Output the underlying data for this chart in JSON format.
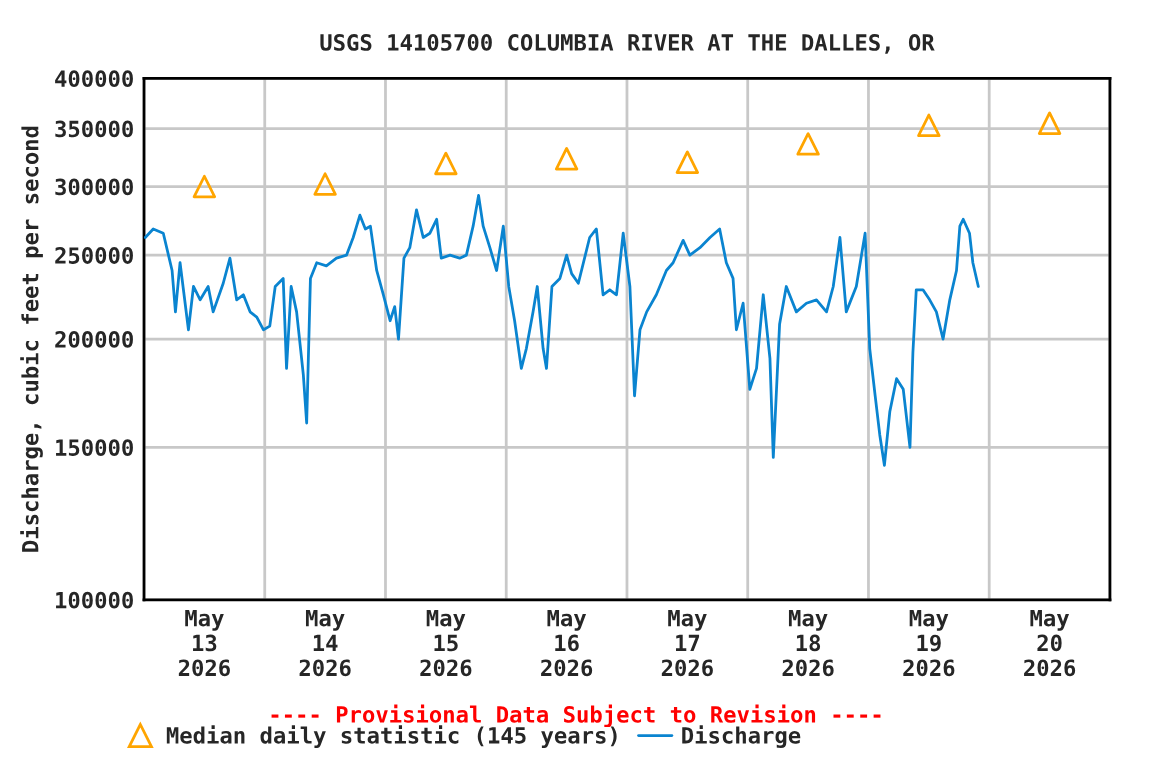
{
  "chart_data": {
    "type": "line",
    "title": "USGS 14105700 COLUMBIA RIVER AT THE DALLES, OR",
    "ylabel": "Discharge, cubic feet per second",
    "annotations": [
      "---- Provisional Data Subject to Revision ----"
    ],
    "log": "y",
    "grid": true,
    "legend": "bottom",
    "xlim": [
      "2026-05-13T00:00",
      "2026-05-21T00:00"
    ],
    "xticks": [
      {
        "value": "2026-05-13T00:00",
        "label": null
      },
      {
        "value": "2026-05-13T12:00",
        "label": "May\n13\n2026"
      },
      {
        "value": "2026-05-14T00:00",
        "label": null
      },
      {
        "value": "2026-05-14T12:00",
        "label": "May\n14\n2026"
      },
      {
        "value": "2026-05-15T00:00",
        "label": null
      },
      {
        "value": "2026-05-15T12:00",
        "label": "May\n15\n2026"
      },
      {
        "value": "2026-05-16T00:00",
        "label": null
      },
      {
        "value": "2026-05-16T12:00",
        "label": "May\n16\n2026"
      },
      {
        "value": "2026-05-17T00:00",
        "label": null
      },
      {
        "value": "2026-05-17T12:00",
        "label": "May\n17\n2026"
      },
      {
        "value": "2026-05-18T00:00",
        "label": null
      },
      {
        "value": "2026-05-18T12:00",
        "label": "May\n18\n2026"
      },
      {
        "value": "2026-05-19T00:00",
        "label": null
      },
      {
        "value": "2026-05-19T12:00",
        "label": "May\n19\n2026"
      },
      {
        "value": "2026-05-20T00:00",
        "label": null
      },
      {
        "value": "2026-05-20T12:00",
        "label": "May\n20\n2026"
      },
      {
        "value": "2026-05-21T00:00",
        "label": null
      }
    ],
    "ylim": [
      100000,
      400000
    ],
    "yticks": [
      100000,
      150000,
      200000,
      250000,
      300000,
      350000,
      400000
    ],
    "series": [
      {
        "name": "Median daily statistic (145 years)",
        "type": "scatter",
        "marker": "triangle",
        "color": "#ffa500",
        "x": [
          "2026-05-13T12:00",
          "2026-05-14T12:00",
          "2026-05-15T12:00",
          "2026-05-16T12:00",
          "2026-05-17T12:00",
          "2026-05-18T12:00",
          "2026-05-19T12:00",
          "2026-05-20T12:00"
        ],
        "values": [
          300000,
          302000,
          319000,
          323000,
          320000,
          336000,
          353000,
          355000
        ]
      },
      {
        "name": "Discharge",
        "marker": "none",
        "line_style": "solid",
        "color": "#0a84d0",
        "x": [
          "2026-05-13T00:15",
          "2026-05-13T01:50",
          "2026-05-13T03:50",
          "2026-05-13T05:35",
          "2026-05-13T06:15",
          "2026-05-13T07:10",
          "2026-05-13T08:50",
          "2026-05-13T09:50",
          "2026-05-13T11:10",
          "2026-05-13T12:45",
          "2026-05-13T13:45",
          "2026-05-13T15:45",
          "2026-05-13T17:05",
          "2026-05-13T18:25",
          "2026-05-13T19:45",
          "2026-05-13T21:05",
          "2026-05-13T22:25",
          "2026-05-13T23:45",
          "2026-05-14T01:00",
          "2026-05-14T02:05",
          "2026-05-14T03:40",
          "2026-05-14T04:20",
          "2026-05-14T05:15",
          "2026-05-14T06:20",
          "2026-05-14T07:40",
          "2026-05-14T08:20",
          "2026-05-14T09:05",
          "2026-05-14T10:20",
          "2026-05-14T12:15",
          "2026-05-14T14:15",
          "2026-05-14T16:15",
          "2026-05-14T17:35",
          "2026-05-14T18:55",
          "2026-05-14T20:00",
          "2026-05-14T21:00",
          "2026-05-14T22:15",
          "2026-05-14T23:35",
          "2026-05-15T00:55",
          "2026-05-15T01:50",
          "2026-05-15T02:35",
          "2026-05-15T03:40",
          "2026-05-15T04:50",
          "2026-05-15T06:10",
          "2026-05-15T07:30",
          "2026-05-15T08:50",
          "2026-05-15T10:10",
          "2026-05-15T11:05",
          "2026-05-15T12:50",
          "2026-05-15T14:45",
          "2026-05-15T16:05",
          "2026-05-15T17:25",
          "2026-05-15T18:30",
          "2026-05-15T19:25",
          "2026-05-15T20:45",
          "2026-05-15T22:05",
          "2026-05-15T23:25",
          "2026-05-16T00:30",
          "2026-05-16T01:40",
          "2026-05-16T03:00",
          "2026-05-16T04:00",
          "2026-05-16T05:20",
          "2026-05-16T06:10",
          "2026-05-16T07:20",
          "2026-05-16T08:00",
          "2026-05-16T09:05",
          "2026-05-16T10:40",
          "2026-05-16T12:00",
          "2026-05-16T13:00",
          "2026-05-16T14:20",
          "2026-05-16T16:35",
          "2026-05-16T17:55",
          "2026-05-16T19:15",
          "2026-05-16T20:35",
          "2026-05-16T21:55",
          "2026-05-16T23:15",
          "2026-05-17T00:35",
          "2026-05-17T01:30",
          "2026-05-17T02:35",
          "2026-05-17T03:55",
          "2026-05-17T05:50",
          "2026-05-17T07:50",
          "2026-05-17T09:10",
          "2026-05-17T11:10",
          "2026-05-17T12:30",
          "2026-05-17T14:30",
          "2026-05-17T16:30",
          "2026-05-17T18:25",
          "2026-05-17T19:45",
          "2026-05-17T21:05",
          "2026-05-17T21:45",
          "2026-05-17T23:05",
          "2026-05-18T00:25",
          "2026-05-18T01:45",
          "2026-05-18T03:05",
          "2026-05-18T04:25",
          "2026-05-18T05:05",
          "2026-05-18T06:20",
          "2026-05-18T07:40",
          "2026-05-18T09:40",
          "2026-05-18T11:40",
          "2026-05-18T13:40",
          "2026-05-18T15:40",
          "2026-05-18T17:00",
          "2026-05-18T18:20",
          "2026-05-18T19:35",
          "2026-05-18T21:35",
          "2026-05-18T23:20",
          "2026-05-19T00:15",
          "2026-05-19T01:20",
          "2026-05-19T02:15",
          "2026-05-19T03:10",
          "2026-05-19T04:15",
          "2026-05-19T05:35",
          "2026-05-19T06:55",
          "2026-05-19T08:15",
          "2026-05-19T08:50",
          "2026-05-19T09:30",
          "2026-05-19T10:50",
          "2026-05-19T12:10",
          "2026-05-19T13:30",
          "2026-05-19T14:50",
          "2026-05-19T16:10",
          "2026-05-19T17:30",
          "2026-05-19T18:10",
          "2026-05-19T18:50",
          "2026-05-19T20:05",
          "2026-05-19T20:45",
          "2026-05-19T21:50"
        ],
        "values": [
          262000,
          268000,
          265000,
          240000,
          215000,
          245000,
          205000,
          230000,
          222000,
          230000,
          215000,
          232000,
          248000,
          222000,
          225000,
          215000,
          212000,
          205000,
          207000,
          230000,
          235000,
          185000,
          230000,
          215000,
          182000,
          160000,
          235000,
          245000,
          243000,
          248000,
          250000,
          262000,
          278000,
          268000,
          270000,
          240000,
          225000,
          210000,
          218000,
          200000,
          248000,
          255000,
          282000,
          262000,
          265000,
          275000,
          248000,
          250000,
          248000,
          250000,
          270000,
          293000,
          270000,
          255000,
          240000,
          270000,
          230000,
          210000,
          185000,
          195000,
          215000,
          230000,
          195000,
          185000,
          230000,
          235000,
          250000,
          238000,
          232000,
          262000,
          268000,
          225000,
          228000,
          225000,
          265000,
          230000,
          172000,
          205000,
          215000,
          225000,
          240000,
          245000,
          260000,
          250000,
          255000,
          262000,
          268000,
          245000,
          235000,
          205000,
          220000,
          175000,
          185000,
          225000,
          190000,
          146000,
          208000,
          230000,
          215000,
          220000,
          222000,
          215000,
          230000,
          262000,
          215000,
          230000,
          265000,
          195000,
          172000,
          155000,
          143000,
          165000,
          180000,
          175000,
          150000,
          193000,
          228000,
          228000,
          222000,
          215000,
          200000,
          222000,
          240000,
          270000,
          275000,
          265000,
          245000,
          230000
        ]
      }
    ]
  }
}
